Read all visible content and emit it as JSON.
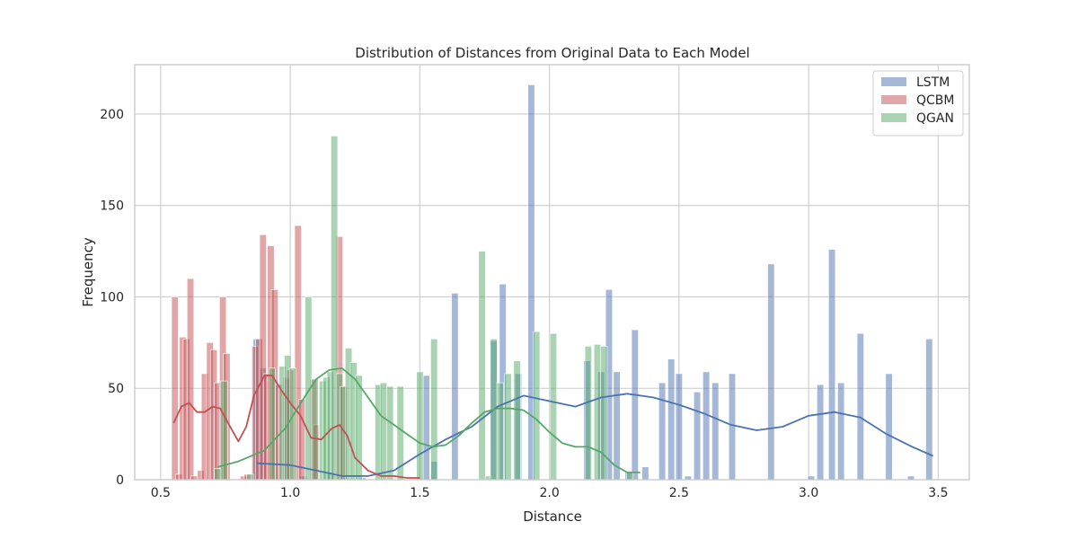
{
  "chart_data": {
    "type": "bar",
    "title": "Distribution of Distances from Original Data to Each Model",
    "xlabel": "Distance",
    "ylabel": "Frequency",
    "xlim": [
      0.4,
      3.62
    ],
    "ylim": [
      0,
      227
    ],
    "x_ticks": [
      0.5,
      1.0,
      1.5,
      2.0,
      2.5,
      3.0,
      3.5
    ],
    "x_tick_labels": [
      "0.5",
      "1.0",
      "1.5",
      "2.0",
      "2.5",
      "3.0",
      "3.5"
    ],
    "y_ticks": [
      0,
      50,
      100,
      150,
      200
    ],
    "y_tick_labels": [
      "0",
      "50",
      "100",
      "150",
      "200"
    ],
    "grid": true,
    "legend_position": "top-right",
    "bin_width": 0.026,
    "series": [
      {
        "name": "LSTM",
        "color": "#4c72b0",
        "bins": [
          {
            "x": 0.87,
            "y": 77
          },
          {
            "x": 0.895,
            "y": 61
          },
          {
            "x": 0.99,
            "y": 55
          },
          {
            "x": 1.05,
            "y": 2
          },
          {
            "x": 1.155,
            "y": 4
          },
          {
            "x": 1.28,
            "y": 1
          },
          {
            "x": 1.525,
            "y": 57
          },
          {
            "x": 1.555,
            "y": 10
          },
          {
            "x": 1.635,
            "y": 102
          },
          {
            "x": 1.785,
            "y": 76
          },
          {
            "x": 1.82,
            "y": 107
          },
          {
            "x": 1.88,
            "y": 58
          },
          {
            "x": 1.93,
            "y": 216
          },
          {
            "x": 2.145,
            "y": 65
          },
          {
            "x": 2.2,
            "y": 59
          },
          {
            "x": 2.23,
            "y": 104
          },
          {
            "x": 2.26,
            "y": 59
          },
          {
            "x": 2.305,
            "y": 4
          },
          {
            "x": 2.33,
            "y": 82
          },
          {
            "x": 2.37,
            "y": 7
          },
          {
            "x": 2.435,
            "y": 53
          },
          {
            "x": 2.47,
            "y": 66
          },
          {
            "x": 2.5,
            "y": 58
          },
          {
            "x": 2.535,
            "y": 2
          },
          {
            "x": 2.57,
            "y": 48
          },
          {
            "x": 2.605,
            "y": 59
          },
          {
            "x": 2.64,
            "y": 53
          },
          {
            "x": 2.705,
            "y": 58
          },
          {
            "x": 2.855,
            "y": 118
          },
          {
            "x": 3.01,
            "y": 2
          },
          {
            "x": 3.045,
            "y": 52
          },
          {
            "x": 3.09,
            "y": 126
          },
          {
            "x": 3.125,
            "y": 53
          },
          {
            "x": 3.2,
            "y": 80
          },
          {
            "x": 3.31,
            "y": 58
          },
          {
            "x": 3.395,
            "y": 2
          },
          {
            "x": 3.465,
            "y": 77
          }
        ],
        "kde": [
          [
            0.87,
            9
          ],
          [
            1.0,
            8
          ],
          [
            1.1,
            5
          ],
          [
            1.2,
            2
          ],
          [
            1.3,
            2
          ],
          [
            1.4,
            5
          ],
          [
            1.5,
            14
          ],
          [
            1.6,
            22
          ],
          [
            1.7,
            29
          ],
          [
            1.8,
            40
          ],
          [
            1.9,
            46
          ],
          [
            2.0,
            43
          ],
          [
            2.1,
            40
          ],
          [
            2.2,
            45
          ],
          [
            2.3,
            47
          ],
          [
            2.4,
            45
          ],
          [
            2.5,
            41
          ],
          [
            2.6,
            36
          ],
          [
            2.7,
            30
          ],
          [
            2.8,
            27
          ],
          [
            2.9,
            29
          ],
          [
            3.0,
            35
          ],
          [
            3.1,
            37
          ],
          [
            3.2,
            34
          ],
          [
            3.3,
            25
          ],
          [
            3.4,
            18
          ],
          [
            3.48,
            13
          ]
        ]
      },
      {
        "name": "QCBM",
        "color": "#c44e52",
        "bins": [
          {
            "x": 0.555,
            "y": 100
          },
          {
            "x": 0.57,
            "y": 3
          },
          {
            "x": 0.585,
            "y": 78
          },
          {
            "x": 0.6,
            "y": 77
          },
          {
            "x": 0.615,
            "y": 110
          },
          {
            "x": 0.63,
            "y": 2
          },
          {
            "x": 0.655,
            "y": 5
          },
          {
            "x": 0.67,
            "y": 58
          },
          {
            "x": 0.69,
            "y": 75
          },
          {
            "x": 0.705,
            "y": 71
          },
          {
            "x": 0.72,
            "y": 53
          },
          {
            "x": 0.74,
            "y": 100
          },
          {
            "x": 0.755,
            "y": 69
          },
          {
            "x": 0.82,
            "y": 2
          },
          {
            "x": 0.835,
            "y": 3
          },
          {
            "x": 0.865,
            "y": 73
          },
          {
            "x": 0.88,
            "y": 77
          },
          {
            "x": 0.895,
            "y": 134
          },
          {
            "x": 0.91,
            "y": 58
          },
          {
            "x": 0.925,
            "y": 128
          },
          {
            "x": 0.94,
            "y": 104
          },
          {
            "x": 0.955,
            "y": 52
          },
          {
            "x": 0.985,
            "y": 56
          },
          {
            "x": 1.0,
            "y": 60
          },
          {
            "x": 1.03,
            "y": 139
          },
          {
            "x": 1.045,
            "y": 44
          },
          {
            "x": 1.09,
            "y": 55
          },
          {
            "x": 1.1,
            "y": 30
          },
          {
            "x": 1.19,
            "y": 133
          },
          {
            "x": 1.205,
            "y": 51
          }
        ],
        "kde": [
          [
            0.55,
            31
          ],
          [
            0.58,
            40
          ],
          [
            0.61,
            42
          ],
          [
            0.64,
            37
          ],
          [
            0.67,
            37
          ],
          [
            0.7,
            40
          ],
          [
            0.73,
            39
          ],
          [
            0.76,
            31
          ],
          [
            0.8,
            21
          ],
          [
            0.83,
            29
          ],
          [
            0.86,
            46
          ],
          [
            0.9,
            57
          ],
          [
            0.93,
            57
          ],
          [
            0.97,
            48
          ],
          [
            1.0,
            42
          ],
          [
            1.04,
            35
          ],
          [
            1.08,
            23
          ],
          [
            1.12,
            22
          ],
          [
            1.16,
            28
          ],
          [
            1.19,
            30
          ],
          [
            1.22,
            24
          ],
          [
            1.25,
            12
          ],
          [
            1.3,
            5
          ],
          [
            1.35,
            2
          ],
          [
            1.4,
            2
          ],
          [
            1.45,
            1
          ],
          [
            1.5,
            1
          ]
        ]
      },
      {
        "name": "QGAN",
        "color": "#55a868",
        "bins": [
          {
            "x": 0.72,
            "y": 6
          },
          {
            "x": 0.745,
            "y": 54
          },
          {
            "x": 0.845,
            "y": 3
          },
          {
            "x": 0.93,
            "y": 61
          },
          {
            "x": 0.97,
            "y": 62
          },
          {
            "x": 0.99,
            "y": 68
          },
          {
            "x": 1.01,
            "y": 61
          },
          {
            "x": 1.07,
            "y": 100
          },
          {
            "x": 1.095,
            "y": 55
          },
          {
            "x": 1.125,
            "y": 54
          },
          {
            "x": 1.14,
            "y": 56
          },
          {
            "x": 1.155,
            "y": 59
          },
          {
            "x": 1.17,
            "y": 188
          },
          {
            "x": 1.19,
            "y": 58
          },
          {
            "x": 1.205,
            "y": 51
          },
          {
            "x": 1.225,
            "y": 72
          },
          {
            "x": 1.245,
            "y": 64
          },
          {
            "x": 1.265,
            "y": 57
          },
          {
            "x": 1.34,
            "y": 52
          },
          {
            "x": 1.36,
            "y": 53
          },
          {
            "x": 1.385,
            "y": 51
          },
          {
            "x": 1.425,
            "y": 51
          },
          {
            "x": 1.5,
            "y": 59
          },
          {
            "x": 1.555,
            "y": 77
          },
          {
            "x": 1.74,
            "y": 125
          },
          {
            "x": 1.765,
            "y": 2
          },
          {
            "x": 1.785,
            "y": 77
          },
          {
            "x": 1.81,
            "y": 53
          },
          {
            "x": 1.84,
            "y": 58
          },
          {
            "x": 1.875,
            "y": 65
          },
          {
            "x": 1.95,
            "y": 81
          },
          {
            "x": 2.015,
            "y": 80
          },
          {
            "x": 2.15,
            "y": 73
          },
          {
            "x": 2.185,
            "y": 74
          },
          {
            "x": 2.21,
            "y": 73
          },
          {
            "x": 2.31,
            "y": 4
          }
        ],
        "kde": [
          [
            0.72,
            7
          ],
          [
            0.8,
            10
          ],
          [
            0.9,
            16
          ],
          [
            0.98,
            28
          ],
          [
            1.05,
            44
          ],
          [
            1.1,
            55
          ],
          [
            1.15,
            60
          ],
          [
            1.2,
            61
          ],
          [
            1.25,
            55
          ],
          [
            1.3,
            45
          ],
          [
            1.35,
            35
          ],
          [
            1.4,
            30
          ],
          [
            1.45,
            25
          ],
          [
            1.5,
            20
          ],
          [
            1.55,
            18
          ],
          [
            1.6,
            19
          ],
          [
            1.65,
            24
          ],
          [
            1.7,
            31
          ],
          [
            1.75,
            37
          ],
          [
            1.8,
            39
          ],
          [
            1.85,
            39
          ],
          [
            1.9,
            38
          ],
          [
            1.95,
            33
          ],
          [
            2.0,
            26
          ],
          [
            2.05,
            20
          ],
          [
            2.1,
            18
          ],
          [
            2.15,
            18
          ],
          [
            2.2,
            15
          ],
          [
            2.25,
            8
          ],
          [
            2.3,
            4
          ],
          [
            2.35,
            4
          ]
        ]
      }
    ]
  }
}
